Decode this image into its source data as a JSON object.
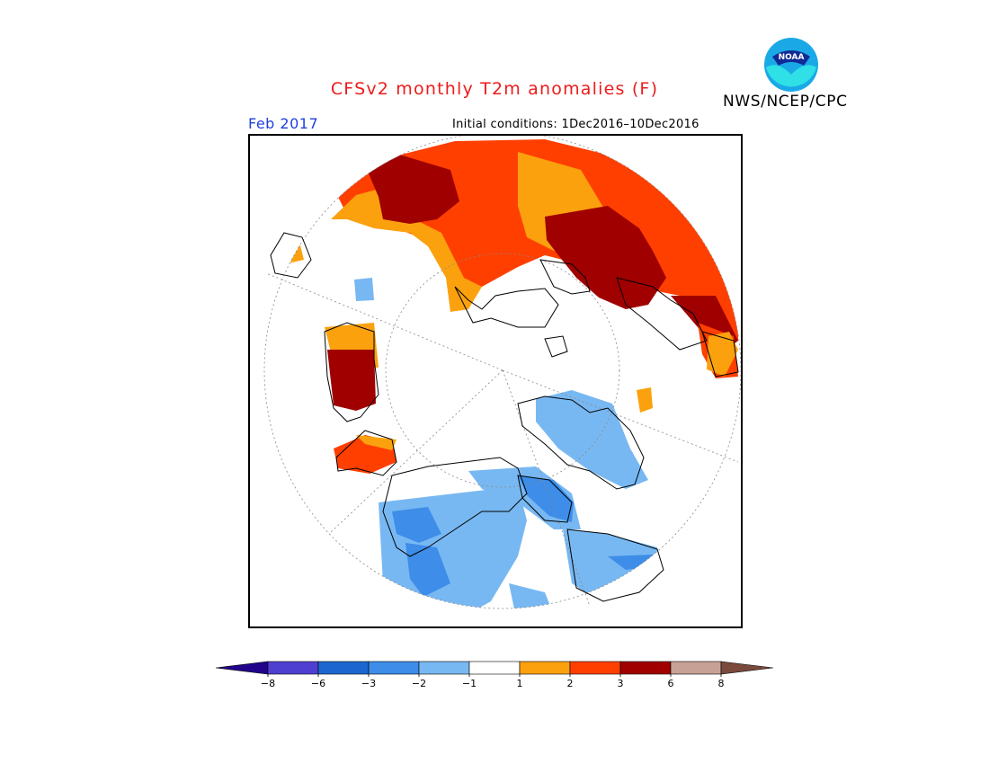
{
  "title": "CFSv2 monthly T2m anomalies (F)",
  "valid_month": "Feb 2017",
  "initial_conditions": "Initial conditions: 1Dec2016–10Dec2016",
  "agency": "NWS/NCEP/CPC",
  "logo_text": "NOAA",
  "colors": {
    "title": "#ee1b1b",
    "valid_month": "#1f3ee0",
    "neutral": "#ffffff",
    "very_cold": "#22048c",
    "cold_6_8": "#4f3fd0",
    "cold_3_6": "#1c67cf",
    "cold_2_3": "#3d8de9",
    "cold_1_2": "#78b8f2",
    "warm_1_2": "#fba10e",
    "warm_2_3": "#ff3f00",
    "warm_3_6": "#a00000",
    "warm_6_8": "#c8a196",
    "very_warm": "#7a4a3c"
  },
  "legend": {
    "ticks": [
      "−8",
      "−6",
      "−3",
      "−2",
      "−1",
      "1",
      "2",
      "3",
      "6",
      "8"
    ],
    "bins": [
      {
        "color": "#22048c"
      },
      {
        "color": "#4f3fd0"
      },
      {
        "color": "#1c67cf"
      },
      {
        "color": "#3d8de9"
      },
      {
        "color": "#78b8f2"
      },
      {
        "color": "#ffffff"
      },
      {
        "color": "#fba10e"
      },
      {
        "color": "#ff3f00"
      },
      {
        "color": "#a00000"
      },
      {
        "color": "#c8a196"
      },
      {
        "color": "#7a4a3c"
      }
    ]
  },
  "map": {
    "projection": "north-polar-stereographic",
    "regions": [
      {
        "name": "eurasia-north-warm",
        "category": "warm_2_3"
      },
      {
        "name": "scandinavia-warm",
        "category": "warm_3_6"
      },
      {
        "name": "east-europe-warm",
        "category": "warm_1_2"
      },
      {
        "name": "siberia-core-warm",
        "category": "warm_3_6"
      },
      {
        "name": "east-asia-warm",
        "category": "warm_2_3"
      },
      {
        "name": "greenland-warm",
        "category": "warm_3_6"
      },
      {
        "name": "alaska-coast-warm",
        "category": "warm_2_3"
      },
      {
        "name": "canada-cold",
        "category": "cold_1_2"
      },
      {
        "name": "hudson-bay-cold",
        "category": "cold_2_3"
      },
      {
        "name": "western-north-america-cold",
        "category": "cold_1_2"
      },
      {
        "name": "northeast-siberia-cold",
        "category": "cold_1_2"
      }
    ]
  }
}
